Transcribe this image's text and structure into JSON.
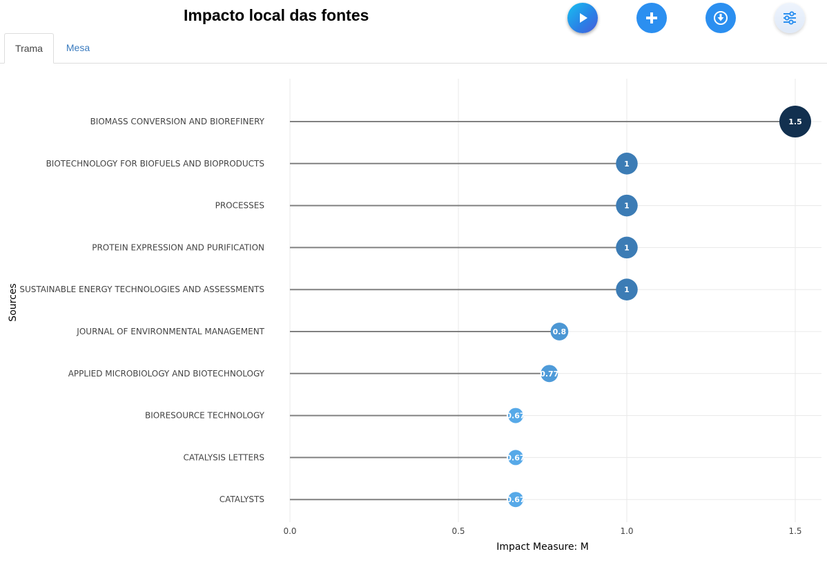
{
  "title": "Impacto local das fontes",
  "toolbar": {
    "play_icon": "play-icon",
    "add_icon": "plus-icon",
    "download_icon": "download-icon",
    "settings_icon": "sliders-icon"
  },
  "tabs": [
    {
      "label": "Trama",
      "active": true
    },
    {
      "label": "Mesa",
      "active": false
    }
  ],
  "colors": {
    "stem": "#808080",
    "grid": "#e8e8e8",
    "scale_high": "#12304f",
    "scale_mid": "#3570a8",
    "scale_low": "#57a9e8"
  },
  "chart_data": {
    "type": "lollipop",
    "orientation": "horizontal",
    "xlabel": "Impact Measure: M",
    "ylabel": "Sources",
    "xlim": [
      0,
      1.5
    ],
    "xticks": [
      "0.0",
      "0.5",
      "1.0",
      "1.5"
    ],
    "grid": true,
    "categories": [
      "BIOMASS CONVERSION AND BIOREFINERY",
      "BIOTECHNOLOGY FOR BIOFUELS AND BIOPRODUCTS",
      "PROCESSES",
      "PROTEIN EXPRESSION AND PURIFICATION",
      "SUSTAINABLE ENERGY TECHNOLOGIES AND ASSESSMENTS",
      "JOURNAL OF ENVIRONMENTAL MANAGEMENT",
      "APPLIED MICROBIOLOGY AND BIOTECHNOLOGY",
      "BIORESOURCE TECHNOLOGY",
      "CATALYSIS LETTERS",
      "CATALYSTS"
    ],
    "values": [
      1.5,
      1,
      1,
      1,
      1,
      0.8,
      0.77,
      0.67,
      0.67,
      0.67
    ],
    "labels": [
      "1.5",
      "1",
      "1",
      "1",
      "1",
      "0.8",
      "0.77",
      "0.67",
      "0.67",
      "0.67"
    ]
  }
}
